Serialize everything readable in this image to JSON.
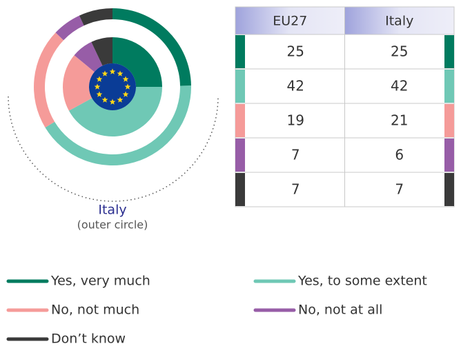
{
  "chart_data": {
    "type": "donut",
    "categories": [
      "Yes, very much",
      "Yes, to some extent",
      "No, not much",
      "No, not at all",
      "Don’t know"
    ],
    "colors": [
      "#007b5f",
      "#6fc8b5",
      "#f59b99",
      "#975da7",
      "#3a3a3a"
    ],
    "series": [
      {
        "name": "EU27",
        "values": [
          25,
          42,
          19,
          7,
          7
        ]
      },
      {
        "name": "Italy",
        "values": [
          25,
          42,
          21,
          6,
          7
        ]
      }
    ],
    "outer_label": "Italy",
    "outer_note": "(outer circle)"
  }
}
